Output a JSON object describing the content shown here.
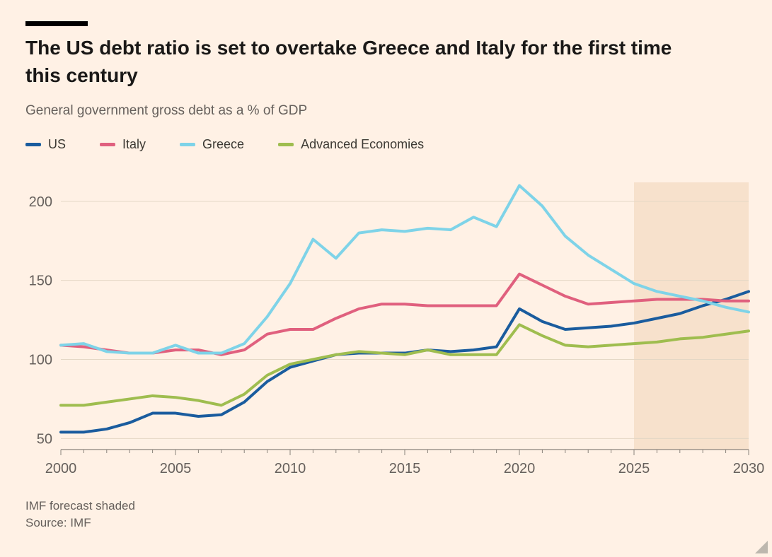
{
  "colors": {
    "background": "#FFF1E5",
    "accent_bar": "#000000",
    "text": "#1a1817",
    "muted_text": "#66605C",
    "gridline": "#e4d7c5",
    "axis": "#8a847c",
    "forecast_fill": "#f7e1cc"
  },
  "footer": {
    "note": "IMF forecast shaded",
    "source": "Source: IMF"
  },
  "chart_data": {
    "type": "line",
    "title": "The US debt ratio is set to overtake Greece and Italy for the first time this century",
    "subtitle": "General government gross debt as a % of GDP",
    "xlabel": "",
    "ylabel": "",
    "x": [
      2000,
      2001,
      2002,
      2003,
      2004,
      2005,
      2006,
      2007,
      2008,
      2009,
      2010,
      2011,
      2012,
      2013,
      2014,
      2015,
      2016,
      2017,
      2018,
      2019,
      2020,
      2021,
      2022,
      2023,
      2024,
      2025,
      2026,
      2027,
      2028,
      2029,
      2030
    ],
    "series": [
      {
        "name": "US",
        "color": "#1a5c9e",
        "values": [
          54,
          54,
          56,
          60,
          66,
          66,
          64,
          65,
          73,
          86,
          95,
          99,
          103,
          104,
          104,
          104,
          106,
          105,
          106,
          108,
          132,
          124,
          119,
          120,
          121,
          123,
          126,
          129,
          134,
          138,
          143
        ]
      },
      {
        "name": "Italy",
        "color": "#e0607e",
        "values": [
          109,
          108,
          106,
          104,
          104,
          106,
          106,
          103,
          106,
          116,
          119,
          119,
          126,
          132,
          135,
          135,
          134,
          134,
          134,
          134,
          154,
          147,
          140,
          135,
          136,
          137,
          138,
          138,
          138,
          137,
          137
        ]
      },
      {
        "name": "Greece",
        "color": "#7ed3e8",
        "values": [
          109,
          110,
          105,
          104,
          104,
          109,
          104,
          104,
          110,
          127,
          148,
          176,
          164,
          180,
          182,
          181,
          183,
          182,
          190,
          184,
          210,
          197,
          178,
          166,
          157,
          148,
          143,
          140,
          137,
          133,
          130
        ]
      },
      {
        "name": "Advanced Economies",
        "color": "#9fbd4f",
        "values": [
          71,
          71,
          73,
          75,
          77,
          76,
          74,
          71,
          78,
          90,
          97,
          100,
          103,
          105,
          104,
          103,
          106,
          103,
          103,
          103,
          122,
          115,
          109,
          108,
          109,
          110,
          111,
          113,
          114,
          116,
          118
        ]
      }
    ],
    "xlim": [
      2000,
      2030
    ],
    "ylim": [
      43,
      212
    ],
    "xticks": [
      2000,
      2005,
      2010,
      2015,
      2020,
      2025,
      2030
    ],
    "yticks": [
      50,
      100,
      150,
      200
    ],
    "grid": "horizontal-y",
    "legend_position": "top-left",
    "forecast_region": {
      "x_start": 2025,
      "x_end": 2030,
      "note": "IMF forecast shaded"
    }
  }
}
